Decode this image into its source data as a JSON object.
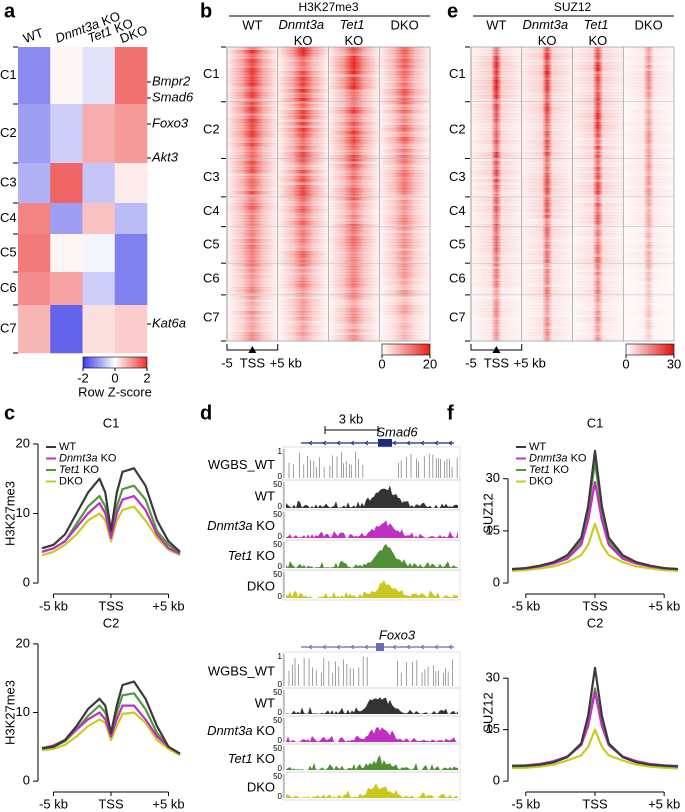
{
  "panel_labels": [
    "a",
    "b",
    "c",
    "d",
    "e",
    "f"
  ],
  "chart_data": [
    {
      "type": "heatmap",
      "columns": [
        "WT",
        "Dnmt3a KO",
        "Tet1 KO",
        "DKO"
      ],
      "rows": [
        "C1",
        "C2",
        "C3",
        "C4",
        "C5",
        "C6",
        "C7"
      ],
      "values": [
        [
          -1.2,
          0.1,
          -0.3,
          1.4
        ],
        [
          -1.0,
          -0.5,
          0.8,
          1.0
        ],
        [
          -0.8,
          1.5,
          -0.6,
          0.2
        ],
        [
          1.2,
          -1.0,
          0.6,
          -0.7
        ],
        [
          1.3,
          0.1,
          -0.1,
          -1.3
        ],
        [
          1.1,
          0.9,
          -0.5,
          -1.3
        ],
        [
          0.7,
          -1.6,
          0.3,
          0.5
        ]
      ],
      "row_annotations": [
        "Bmpr2",
        "Smad6",
        "Foxo3",
        "Akt3",
        "Kat6a"
      ],
      "clim": [
        -2,
        2
      ],
      "colorbar_ticks": [
        -2,
        0,
        2
      ],
      "colorbar_label": "Row Z-score",
      "colors": [
        "#3c3ce6",
        "#ffffff",
        "#eb3232"
      ]
    },
    {
      "type": "signal_heatmap",
      "title": "H3K27me3",
      "columns": [
        "WT",
        "Dnmt3a KO",
        "Tet1 KO",
        "DKO"
      ],
      "rows": [
        "C1",
        "C2",
        "C3",
        "C4",
        "C5",
        "C6",
        "C7"
      ],
      "xlim": [
        -5,
        5
      ],
      "xticks": [
        -5,
        {
          "value": 0,
          "label": "TSS"
        },
        {
          "value": 5,
          "label": "+5 kb"
        }
      ],
      "clim": [
        0,
        20
      ],
      "colorbar_ticks": [
        0,
        20
      ],
      "color": "#e8201a"
    },
    {
      "type": "signal_heatmap",
      "title": "SUZ12",
      "columns": [
        "WT",
        "Dnmt3a KO",
        "Tet1 KO",
        "DKO"
      ],
      "rows": [
        "C1",
        "C2",
        "C3",
        "C4",
        "C5",
        "C6",
        "C7"
      ],
      "xlim": [
        -5,
        5
      ],
      "xticks": [
        -5,
        {
          "value": 0,
          "label": "TSS"
        },
        {
          "value": 5,
          "label": "+5 kb"
        }
      ],
      "clim": [
        0,
        30
      ],
      "colorbar_ticks": [
        0,
        30
      ],
      "color": "#e01010"
    },
    {
      "type": "line",
      "title": "C1",
      "ylabel": "H3K27me3",
      "x": [
        -6,
        -5,
        -4,
        -3,
        -2,
        -1,
        -0.5,
        0,
        0.5,
        1,
        2,
        3,
        4,
        5,
        6
      ],
      "xlim": [
        -6,
        6
      ],
      "xticks": [
        {
          "value": -5,
          "label": "-5 kb"
        },
        {
          "value": 0,
          "label": "TSS"
        },
        {
          "value": 5,
          "label": "+5 kb"
        }
      ],
      "ylim": [
        -1,
        21
      ],
      "yticks": [
        0,
        10,
        20
      ],
      "legend": "upper left",
      "series": [
        {
          "name": "WT",
          "color": "#3a3a3a",
          "values": [
            5,
            5.5,
            7,
            10,
            13,
            15,
            13,
            7.5,
            13,
            16,
            16.5,
            14,
            9,
            6,
            4.5
          ]
        },
        {
          "name": "Dnmt3a KO",
          "color": "#c030c0",
          "values": [
            4.5,
            5,
            6,
            8,
            10,
            11.5,
            10,
            6.5,
            10,
            12,
            12.5,
            10.5,
            7,
            5,
            4.2
          ]
        },
        {
          "name": "Tet1 KO",
          "color": "#4f9a3f",
          "values": [
            4.5,
            5,
            6,
            8.5,
            11,
            12.5,
            11,
            6.8,
            11,
            13.5,
            14,
            12,
            7.5,
            5.5,
            4.3
          ]
        },
        {
          "name": "DKO",
          "color": "#c9cc20",
          "values": [
            4,
            4.5,
            5.5,
            7,
            9,
            10,
            9,
            6,
            9,
            10.5,
            11,
            9,
            6.5,
            4.8,
            4
          ]
        }
      ]
    },
    {
      "type": "line",
      "title": "C2",
      "ylabel": "H3K27me3",
      "x": [
        -6,
        -5,
        -4,
        -3,
        -2,
        -1,
        -0.5,
        0,
        0.5,
        1,
        2,
        3,
        4,
        5,
        6
      ],
      "xlim": [
        -6,
        6
      ],
      "xticks": [
        {
          "value": -5,
          "label": "-5 kb"
        },
        {
          "value": 0,
          "label": "TSS"
        },
        {
          "value": 5,
          "label": "+5 kb"
        }
      ],
      "ylim": [
        -1,
        21
      ],
      "yticks": [
        0,
        10,
        20
      ],
      "series": [
        {
          "name": "WT",
          "color": "#3a3a3a",
          "values": [
            4.8,
            5,
            6,
            8,
            10.5,
            12,
            11,
            7,
            11,
            14,
            14.5,
            12,
            8,
            5,
            4
          ]
        },
        {
          "name": "Dnmt3a KO",
          "color": "#c030c0",
          "values": [
            4.8,
            5.2,
            6,
            7.5,
            9,
            10,
            9,
            6.5,
            9,
            11,
            11,
            9,
            6.5,
            5,
            4
          ]
        },
        {
          "name": "Tet1 KO",
          "color": "#4f9a3f",
          "values": [
            4.7,
            5,
            5.8,
            7.5,
            9.5,
            11,
            10,
            6.8,
            10,
            12.5,
            12.8,
            10.5,
            7,
            5,
            4
          ]
        },
        {
          "name": "DKO",
          "color": "#c9cc20",
          "values": [
            4.5,
            4.7,
            5.3,
            6.5,
            8,
            9,
            8.5,
            6,
            8,
            9.8,
            10,
            8.5,
            6,
            4.7,
            3.8
          ]
        }
      ]
    },
    {
      "type": "tracks",
      "scale_bar": "3 kb",
      "loci": [
        {
          "gene": "Smad6",
          "tracks": [
            {
              "name": "WGBS_WT",
              "color": "#777777",
              "yticks": [
                0,
                1
              ]
            },
            {
              "name": "WT",
              "color": "#333333",
              "yticks": [
                0,
                50
              ]
            },
            {
              "name": "Dnmt3a KO",
              "color": "#c030c0",
              "yticks": [
                0,
                50
              ]
            },
            {
              "name": "Tet1 KO",
              "color": "#4f8f35",
              "yticks": [
                0,
                50
              ]
            },
            {
              "name": "DKO",
              "color": "#c8c81e",
              "yticks": [
                0,
                50
              ]
            }
          ]
        },
        {
          "gene": "Foxo3",
          "tracks": [
            {
              "name": "WGBS_WT",
              "color": "#777777",
              "yticks": [
                0,
                1
              ]
            },
            {
              "name": "WT",
              "color": "#333333",
              "yticks": [
                0,
                50
              ]
            },
            {
              "name": "Dnmt3a KO",
              "color": "#c030c0",
              "yticks": [
                0,
                50
              ]
            },
            {
              "name": "Tet1 KO",
              "color": "#4f8f35",
              "yticks": [
                0,
                50
              ]
            },
            {
              "name": "DKO",
              "color": "#c8c81e",
              "yticks": [
                0,
                50
              ]
            }
          ]
        }
      ]
    },
    {
      "type": "line",
      "title": "C1",
      "ylabel": "SUZ12",
      "x": [
        -6,
        -5,
        -4,
        -3,
        -2,
        -1,
        -0.5,
        0,
        0.5,
        1,
        2,
        3,
        4,
        5,
        6
      ],
      "xlim": [
        -6,
        6
      ],
      "xticks": [
        {
          "value": -5,
          "label": "-5 kb"
        },
        {
          "value": 0,
          "label": "TSS"
        },
        {
          "value": 5,
          "label": "+5 kb"
        }
      ],
      "ylim": [
        -2,
        42
      ],
      "yticks": [
        0,
        15,
        30
      ],
      "legend": "upper left",
      "series": [
        {
          "name": "WT",
          "color": "#3a3a3a",
          "values": [
            4,
            4.3,
            5,
            6,
            8,
            13,
            22,
            38,
            22,
            13,
            8,
            6,
            5,
            4.3,
            4
          ]
        },
        {
          "name": "Dnmt3a KO",
          "color": "#c030c0",
          "values": [
            4,
            4.2,
            4.8,
            5.6,
            7,
            11,
            18,
            29,
            18,
            11,
            7,
            5.6,
            4.8,
            4.2,
            4
          ]
        },
        {
          "name": "Tet1 KO",
          "color": "#4f9a3f",
          "values": [
            4,
            4.2,
            4.8,
            5.8,
            7.5,
            12,
            20,
            35,
            20,
            12,
            7.5,
            5.8,
            4.8,
            4.2,
            4
          ]
        },
        {
          "name": "DKO",
          "color": "#c9cc20",
          "values": [
            3.5,
            3.7,
            4.2,
            4.8,
            6,
            8,
            11,
            17,
            11,
            8,
            6,
            4.8,
            4.2,
            3.7,
            3.5
          ]
        }
      ]
    },
    {
      "type": "line",
      "title": "C2",
      "ylabel": "SUZ12",
      "x": [
        -6,
        -5,
        -4,
        -3,
        -2,
        -1,
        -0.5,
        0,
        0.5,
        1,
        2,
        3,
        4,
        5,
        6
      ],
      "xlim": [
        -6,
        6
      ],
      "xticks": [
        {
          "value": -5,
          "label": "-5 kb"
        },
        {
          "value": 0,
          "label": "TSS"
        },
        {
          "value": 5,
          "label": "+5 kb"
        }
      ],
      "ylim": [
        -2,
        42
      ],
      "yticks": [
        0,
        15,
        30
      ],
      "series": [
        {
          "name": "WT",
          "color": "#3a3a3a",
          "values": [
            4.5,
            4.5,
            4.8,
            5.5,
            7,
            11,
            19,
            33,
            19,
            11,
            7,
            5.5,
            4.8,
            4.5,
            4.3
          ]
        },
        {
          "name": "Dnmt3a KO",
          "color": "#c030c0",
          "values": [
            4.5,
            4.6,
            5,
            5.8,
            7.2,
            10.5,
            16,
            26,
            16,
            10.5,
            7.2,
            5.8,
            5,
            4.6,
            4.4
          ]
        },
        {
          "name": "Tet1 KO",
          "color": "#4f9a3f",
          "values": [
            4.3,
            4.4,
            4.8,
            5.5,
            7,
            10.5,
            16.5,
            27,
            16.5,
            10.5,
            7,
            5.5,
            4.8,
            4.4,
            4.2
          ]
        },
        {
          "name": "DKO",
          "color": "#c9cc20",
          "values": [
            3.8,
            3.9,
            4.2,
            4.8,
            6,
            7.5,
            10,
            15,
            10,
            7.5,
            6,
            4.8,
            4.2,
            3.9,
            3.7
          ]
        }
      ]
    }
  ]
}
